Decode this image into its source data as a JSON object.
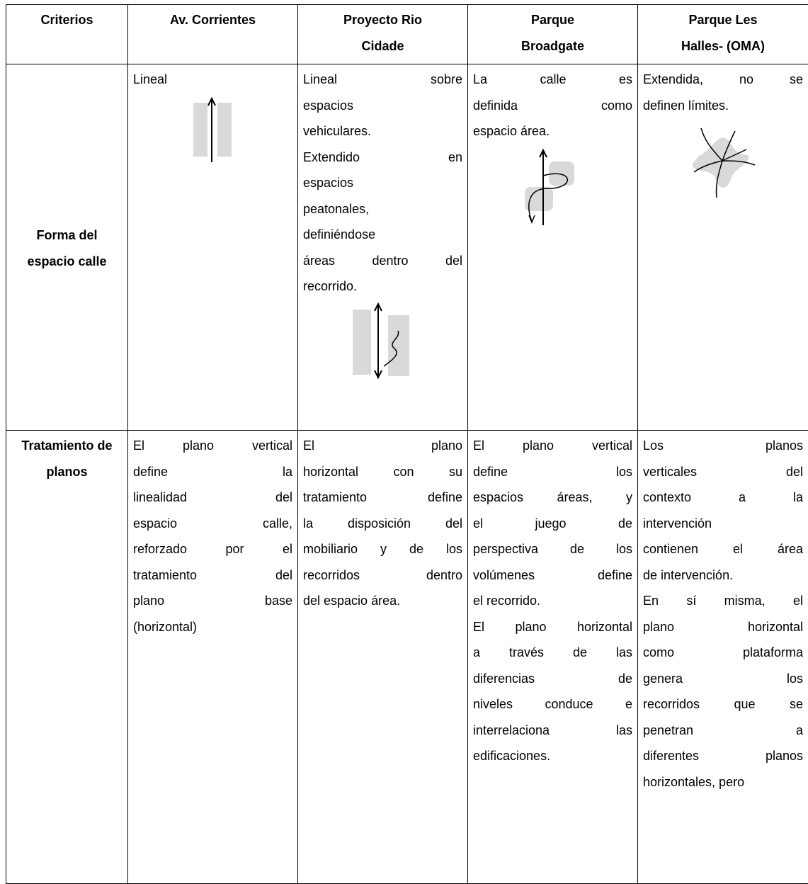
{
  "table": {
    "header": [
      [
        "Criterios"
      ],
      [
        "Av. Corrientes"
      ],
      [
        "Proyecto Rio",
        "Cidade"
      ],
      [
        "Parque",
        "Broadgate"
      ],
      [
        "Parque Les",
        "Halles- (OMA)"
      ]
    ],
    "rows": [
      {
        "criterion": [
          "Forma del",
          "espacio calle"
        ],
        "cells": [
          [
            [
              "Lineal"
            ]
          ],
          [
            [
              "Lineal sobre",
              "espacios",
              "vehiculares."
            ],
            [
              "Extendido en",
              "espacios",
              "peatonales,",
              "definiéndose",
              "áreas dentro del",
              "recorrido."
            ]
          ],
          [
            [
              "La calle es",
              "definida como",
              "espacio área."
            ]
          ],
          [
            [
              "Extendida, no se",
              "definen límites."
            ]
          ]
        ]
      },
      {
        "criterion": [
          "Tratamiento de",
          "planos"
        ],
        "cells": [
          [
            [
              "El plano vertical",
              "define la",
              "linealidad del",
              "espacio calle,",
              "reforzado por el",
              "tratamiento del",
              "plano base",
              "(horizontal)"
            ]
          ],
          [
            [
              "El plano",
              "horizontal con su",
              "tratamiento define",
              "la disposición del",
              "mobiliario y de los",
              "recorridos dentro",
              "del espacio área."
            ]
          ],
          [
            [
              "El plano vertical",
              "define los",
              "espacios áreas, y",
              "el juego de",
              "perspectiva de los",
              "volúmenes define",
              "el recorrido."
            ],
            [
              "El plano horizontal",
              "a través de las",
              "diferencias de",
              "niveles conduce e",
              "interrelaciona las",
              "edificaciones."
            ]
          ],
          [
            [
              "Los planos",
              "verticales del",
              "contexto a la",
              "intervención",
              "contienen el área",
              "de intervención."
            ],
            [
              "En sí misma, el",
              "plano horizontal",
              "como plataforma",
              "genera los",
              "recorridos que se",
              "penetran a",
              "diferentes planos",
              "horizontales, pero"
            ]
          ]
        ]
      }
    ]
  }
}
